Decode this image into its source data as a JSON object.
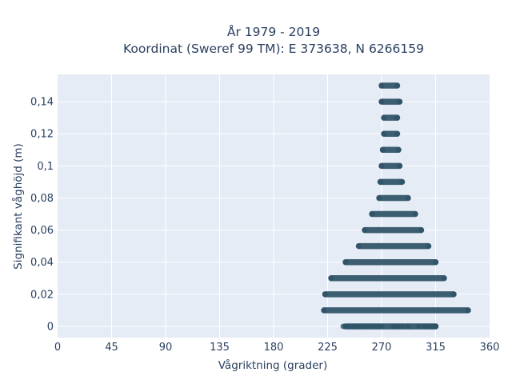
{
  "chart_data": {
    "type": "scatter",
    "title_lines": [
      "År 1979 - 2019",
      "Koordinat (Sweref 99 TM): E 373638, N 6266159"
    ],
    "xlabel": "Vågriktning (grader)",
    "ylabel": "Signifikant våghöjd (m)",
    "xlim": [
      0,
      360
    ],
    "ylim": [
      -0.007,
      0.157
    ],
    "x_ticks": [
      {
        "value": 0,
        "label": "0"
      },
      {
        "value": 45,
        "label": "45"
      },
      {
        "value": 90,
        "label": "90"
      },
      {
        "value": 135,
        "label": "135"
      },
      {
        "value": 180,
        "label": "180"
      },
      {
        "value": 225,
        "label": "225"
      },
      {
        "value": 270,
        "label": "270"
      },
      {
        "value": 315,
        "label": "315"
      },
      {
        "value": 360,
        "label": "360"
      }
    ],
    "y_ticks": [
      {
        "value": 0,
        "label": "0"
      },
      {
        "value": 0.02,
        "label": "0,02"
      },
      {
        "value": 0.04,
        "label": "0,04"
      },
      {
        "value": 0.06,
        "label": "0,06"
      },
      {
        "value": 0.08,
        "label": "0,08"
      },
      {
        "value": 0.1,
        "label": "0,1"
      },
      {
        "value": 0.12,
        "label": "0,12"
      },
      {
        "value": 0.14,
        "label": "0,14"
      }
    ],
    "grid": true,
    "marker_color": "#2e5266",
    "plot_background": "#e5ecf6",
    "band_ranges": [
      {
        "y": 0.0,
        "x_min": 240,
        "x_max": 315
      },
      {
        "y": 0.01,
        "x_min": 222,
        "x_max": 342
      },
      {
        "y": 0.02,
        "x_min": 223,
        "x_max": 330
      },
      {
        "y": 0.03,
        "x_min": 228,
        "x_max": 322
      },
      {
        "y": 0.04,
        "x_min": 240,
        "x_max": 315
      },
      {
        "y": 0.05,
        "x_min": 251,
        "x_max": 309
      },
      {
        "y": 0.06,
        "x_min": 256,
        "x_max": 303
      },
      {
        "y": 0.07,
        "x_min": 262,
        "x_max": 298
      },
      {
        "y": 0.08,
        "x_min": 268,
        "x_max": 292
      },
      {
        "y": 0.09,
        "x_min": 269,
        "x_max": 287
      },
      {
        "y": 0.1,
        "x_min": 270,
        "x_max": 285
      },
      {
        "y": 0.11,
        "x_min": 271,
        "x_max": 284
      },
      {
        "y": 0.12,
        "x_min": 272,
        "x_max": 283
      },
      {
        "y": 0.13,
        "x_min": 272,
        "x_max": 283
      },
      {
        "y": 0.14,
        "x_min": 270,
        "x_max": 285
      },
      {
        "y": 0.15,
        "x_min": 270,
        "x_max": 283
      }
    ],
    "scatter_points": [
      {
        "x": 238,
        "y": 0
      },
      {
        "x": 243,
        "y": 0
      },
      {
        "x": 247,
        "y": 0
      },
      {
        "x": 250,
        "y": 0
      },
      {
        "x": 252,
        "y": 0
      },
      {
        "x": 256,
        "y": 0
      },
      {
        "x": 259,
        "y": 0
      },
      {
        "x": 263,
        "y": 0
      },
      {
        "x": 267,
        "y": 0
      },
      {
        "x": 270,
        "y": 0
      },
      {
        "x": 280,
        "y": 0
      },
      {
        "x": 283,
        "y": 0
      },
      {
        "x": 287,
        "y": 0
      },
      {
        "x": 292,
        "y": 0
      },
      {
        "x": 301,
        "y": 0
      },
      {
        "x": 306,
        "y": 0
      },
      {
        "x": 308,
        "y": 0
      },
      {
        "x": 312,
        "y": 0
      },
      {
        "x": 315,
        "y": 0
      }
    ]
  }
}
